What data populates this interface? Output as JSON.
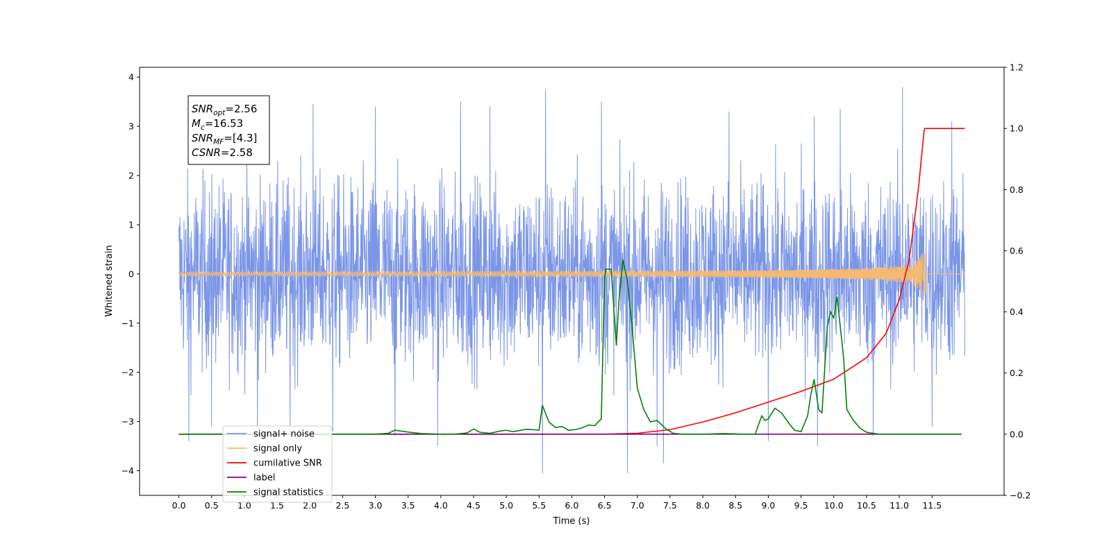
{
  "chart_data": {
    "type": "line",
    "xlabel": "Time (s)",
    "ylabel": "Whitened strain",
    "xlim": [
      -0.6,
      12.6
    ],
    "ylim": [
      -4.5,
      4.2
    ],
    "y2lim": [
      -0.2,
      1.2
    ],
    "x_ticks": [
      "0.0",
      "0.5",
      "1.0",
      "1.5",
      "2.0",
      "2.5",
      "3.0",
      "3.5",
      "4.0",
      "4.5",
      "5.0",
      "5.5",
      "6.0",
      "6.5",
      "7.0",
      "7.5",
      "8.0",
      "8.5",
      "9.0",
      "9.5",
      "10.0",
      "10.5",
      "11.0",
      "11.5"
    ],
    "y_ticks": [
      "-4",
      "-3",
      "-2",
      "-1",
      "0",
      "1",
      "2",
      "3",
      "4"
    ],
    "y2_ticks": [
      "-0.2",
      "0.0",
      "0.2",
      "0.4",
      "0.6",
      "0.8",
      "1.0",
      "1.2"
    ],
    "grid": false,
    "legend_position": "lower-left",
    "annotation": [
      {
        "label": "SNR",
        "sub": "opt",
        "value": "=2.56"
      },
      {
        "label": "M",
        "sub": "c",
        "value": "=16.53"
      },
      {
        "label": "SNR",
        "sub": "MF",
        "value": "=[4.3]"
      },
      {
        "label": "CSNR",
        "sub": "",
        "value": "=2.58"
      }
    ],
    "series": [
      {
        "name": "signal+ noise",
        "color": "#7b96e8",
        "axis": "left",
        "kind": "noise",
        "x_range": [
          0.0,
          12.0
        ],
        "typical_range": [
          -2.2,
          2.2
        ],
        "spikes": [
          [
            0.15,
            -3.4
          ],
          [
            0.5,
            -3.1
          ],
          [
            1.2,
            -3.3
          ],
          [
            1.7,
            -3.2
          ],
          [
            2.05,
            3.45
          ],
          [
            2.35,
            -3.2
          ],
          [
            3.0,
            3.4
          ],
          [
            3.3,
            -3.3
          ],
          [
            3.95,
            -3.5
          ],
          [
            4.3,
            3.5
          ],
          [
            4.75,
            3.4
          ],
          [
            5.55,
            -4.05
          ],
          [
            5.6,
            3.75
          ],
          [
            6.45,
            3.5
          ],
          [
            6.85,
            -4.05
          ],
          [
            7.3,
            -3.5
          ],
          [
            7.4,
            -3.85
          ],
          [
            8.4,
            3.3
          ],
          [
            9.0,
            -3.4
          ],
          [
            9.75,
            -3.5
          ],
          [
            9.7,
            3.2
          ],
          [
            10.1,
            3.35
          ],
          [
            10.6,
            -3.3
          ],
          [
            11.05,
            3.8
          ],
          [
            11.5,
            -3.1
          ],
          [
            11.8,
            3.1
          ]
        ]
      },
      {
        "name": "signal only",
        "color": "#f5b971",
        "axis": "left",
        "kind": "chirp",
        "x_range": [
          0.0,
          11.4
        ],
        "peak_amplitude": 0.45
      },
      {
        "name": "cumilative SNR",
        "color": "#ff0000",
        "axis": "right",
        "x": [
          0.0,
          6.0,
          6.5,
          7.0,
          7.5,
          8.0,
          8.5,
          9.0,
          9.5,
          10.0,
          10.5,
          10.8,
          11.0,
          11.15,
          11.25,
          11.3,
          11.35,
          11.38,
          11.39,
          11.5,
          12.0
        ],
        "y": [
          0.0,
          0.0,
          0.0,
          0.003,
          0.015,
          0.04,
          0.07,
          0.105,
          0.14,
          0.18,
          0.25,
          0.33,
          0.44,
          0.57,
          0.73,
          0.82,
          0.93,
          0.995,
          1.0,
          1.0,
          1.0
        ]
      },
      {
        "name": "label",
        "color": "#800080",
        "axis": "right",
        "x": [
          0.0,
          11.95
        ],
        "y": [
          0.0,
          0.0
        ]
      },
      {
        "name": "signal statistics",
        "color": "#008000",
        "axis": "right",
        "x": [
          0.0,
          3.0,
          3.2,
          3.3,
          3.5,
          3.7,
          4.0,
          4.2,
          4.4,
          4.5,
          4.6,
          4.75,
          4.9,
          5.0,
          5.1,
          5.2,
          5.3,
          5.4,
          5.5,
          5.55,
          5.65,
          5.75,
          5.85,
          5.95,
          6.05,
          6.15,
          6.25,
          6.35,
          6.45,
          6.5,
          6.52,
          6.55,
          6.6,
          6.68,
          6.72,
          6.78,
          6.85,
          6.92,
          7.0,
          7.1,
          7.2,
          7.3,
          7.45,
          7.55,
          7.7,
          8.0,
          8.3,
          8.6,
          8.8,
          8.9,
          8.95,
          9.0,
          9.1,
          9.2,
          9.3,
          9.4,
          9.5,
          9.6,
          9.65,
          9.7,
          9.77,
          9.82,
          9.9,
          9.95,
          10.0,
          10.05,
          10.1,
          10.15,
          10.2,
          10.3,
          10.4,
          10.5,
          10.7,
          11.0,
          11.5,
          11.95
        ],
        "y": [
          0.0,
          0.0,
          0.003,
          0.013,
          0.007,
          0.002,
          0.0,
          0.0,
          0.004,
          0.017,
          0.006,
          0.003,
          0.01,
          0.013,
          0.008,
          0.012,
          0.016,
          0.015,
          0.013,
          0.095,
          0.04,
          0.022,
          0.025,
          0.013,
          0.015,
          0.02,
          0.03,
          0.028,
          0.05,
          0.51,
          0.54,
          0.54,
          0.54,
          0.29,
          0.44,
          0.57,
          0.5,
          0.35,
          0.15,
          0.08,
          0.04,
          0.045,
          0.015,
          0.003,
          0.0,
          0.0,
          0.002,
          0.0,
          0.0,
          0.06,
          0.045,
          0.05,
          0.085,
          0.07,
          0.04,
          0.013,
          0.008,
          0.06,
          0.13,
          0.18,
          0.08,
          0.07,
          0.35,
          0.4,
          0.38,
          0.45,
          0.35,
          0.25,
          0.08,
          0.045,
          0.02,
          0.006,
          0.0,
          0.0,
          0.0,
          0.0
        ]
      }
    ]
  }
}
